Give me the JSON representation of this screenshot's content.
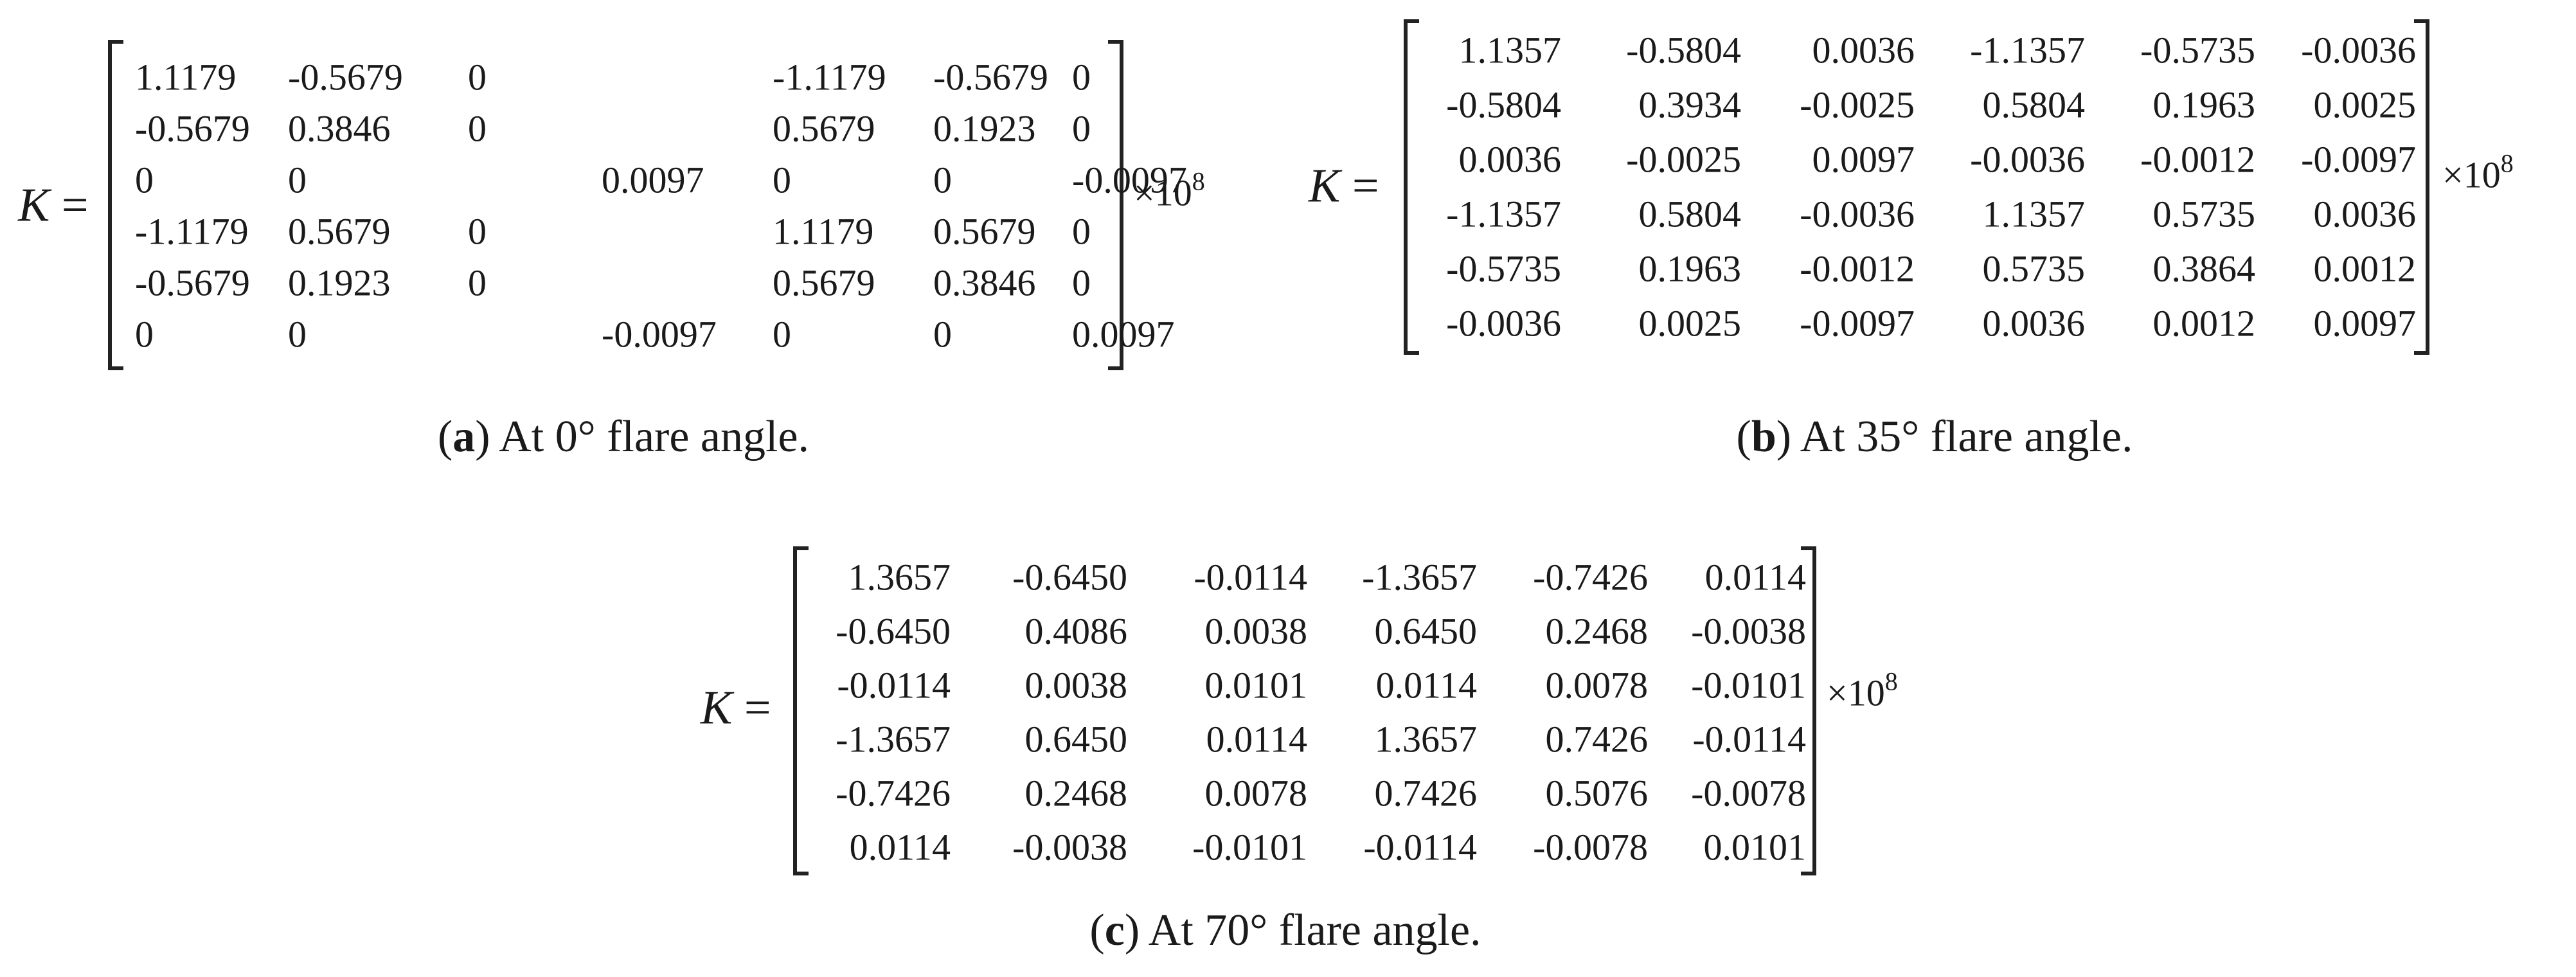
{
  "matrices": [
    {
      "k_symbol": "K",
      "equals": "=",
      "scale_base": "×10",
      "scale_exp": "8",
      "caption_letter": "a",
      "caption_text": "At 0° flare angle.",
      "rows": [
        [
          "1.1179",
          "-0.5679",
          "0",
          "",
          "-1.1179",
          "-0.5679",
          "0"
        ],
        [
          "-0.5679",
          "0.3846",
          "0",
          "",
          "0.5679",
          "0.1923",
          "0"
        ],
        [
          "0",
          "0",
          "",
          "0.0097",
          "0",
          "0",
          "-0.0097"
        ],
        [
          "-1.1179",
          "0.5679",
          "0",
          "",
          "1.1179",
          "0.5679",
          "0"
        ],
        [
          "-0.5679",
          "0.1923",
          "0",
          "",
          "0.5679",
          "0.3846",
          "0"
        ],
        [
          "0",
          "0",
          "",
          "-0.0097",
          "0",
          "0",
          "0.0097"
        ]
      ]
    },
    {
      "k_symbol": "K",
      "equals": "=",
      "scale_base": "×10",
      "scale_exp": "8",
      "caption_letter": "b",
      "caption_text": "At 35° flare angle.",
      "rows": [
        [
          "1.1357",
          "-0.5804",
          "0.0036",
          "-1.1357",
          "-0.5735",
          "-0.0036"
        ],
        [
          "-0.5804",
          "0.3934",
          "-0.0025",
          "0.5804",
          "0.1963",
          "0.0025"
        ],
        [
          "0.0036",
          "-0.0025",
          "0.0097",
          "-0.0036",
          "-0.0012",
          "-0.0097"
        ],
        [
          "-1.1357",
          "0.5804",
          "-0.0036",
          "1.1357",
          "0.5735",
          "0.0036"
        ],
        [
          "-0.5735",
          "0.1963",
          "-0.0012",
          "0.5735",
          "0.3864",
          "0.0012"
        ],
        [
          "-0.0036",
          "0.0025",
          "-0.0097",
          "0.0036",
          "0.0012",
          "0.0097"
        ]
      ]
    },
    {
      "k_symbol": "K",
      "equals": "=",
      "scale_base": "×10",
      "scale_exp": "8",
      "caption_letter": "c",
      "caption_text": "At 70° flare angle.",
      "rows": [
        [
          "1.3657",
          "-0.6450",
          "-0.0114",
          "-1.3657",
          "-0.7426",
          "0.0114"
        ],
        [
          "-0.6450",
          "0.4086",
          "0.0038",
          "0.6450",
          "0.2468",
          "-0.0038"
        ],
        [
          "-0.0114",
          "0.0038",
          "0.0101",
          "0.0114",
          "0.0078",
          "-0.0101"
        ],
        [
          "-1.3657",
          "0.6450",
          "0.0114",
          "1.3657",
          "0.7426",
          "-0.0114"
        ],
        [
          "-0.7426",
          "0.2468",
          "0.0078",
          "0.7426",
          "0.5076",
          "-0.0078"
        ],
        [
          "0.0114",
          "-0.0038",
          "-0.0101",
          "-0.0114",
          "-0.0078",
          "0.0101"
        ]
      ]
    }
  ]
}
